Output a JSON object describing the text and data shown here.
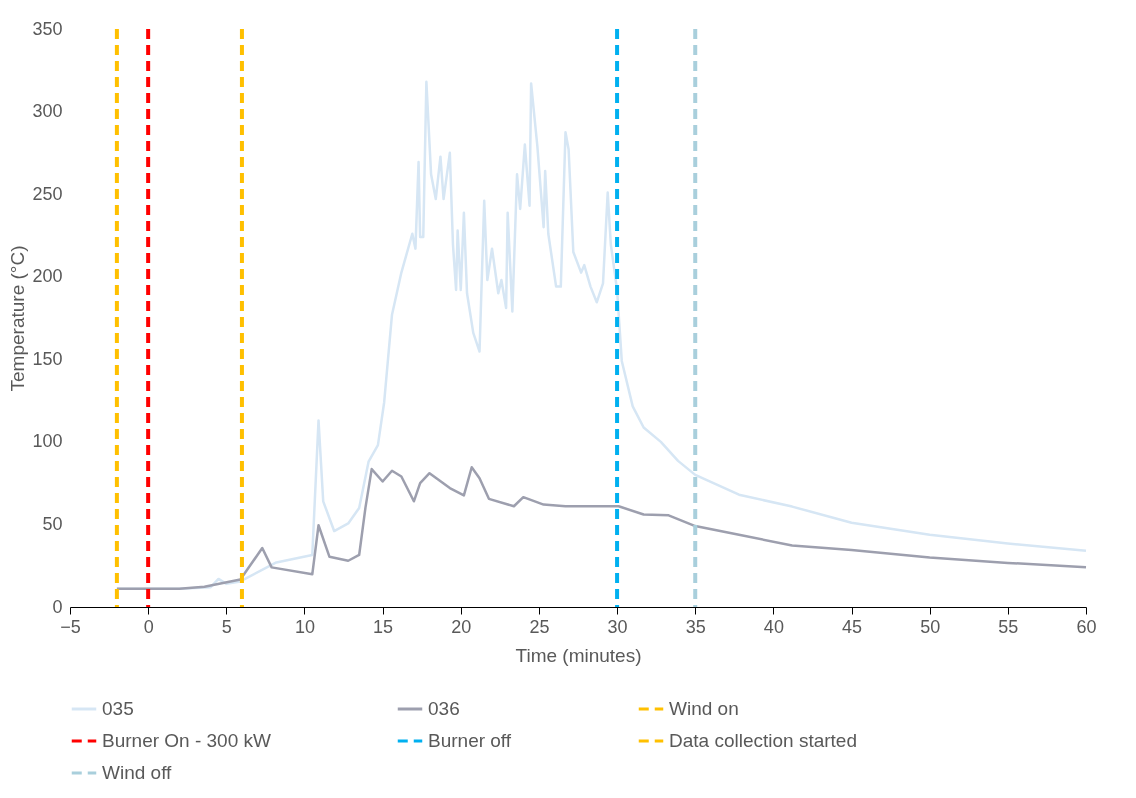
{
  "chart_data": {
    "type": "line",
    "xlabel": "Time (minutes)",
    "ylabel": "Temperature (°C)",
    "xlim": [
      -5,
      60
    ],
    "ylim": [
      0,
      350
    ],
    "xticks": [
      -5,
      0,
      5,
      10,
      15,
      20,
      25,
      30,
      35,
      40,
      45,
      50,
      55,
      60
    ],
    "yticks": [
      0,
      50,
      100,
      150,
      200,
      250,
      300,
      350
    ],
    "grid": false,
    "legend": "bottom",
    "marker": "none",
    "series": [
      {
        "name": "035",
        "color": "#d6e6f4",
        "x": [
          -2,
          0,
          2,
          4,
          4.5,
          5,
          5.9,
          8.2,
          10.5,
          10.9,
          11.2,
          11.9,
          12.8,
          13.5,
          14.1,
          14.7,
          15.1,
          15.6,
          16.2,
          16.9,
          17.1,
          17.3,
          17.4,
          17.6,
          17.8,
          18.1,
          18.4,
          18.7,
          18.9,
          19.3,
          19.5,
          19.7,
          19.8,
          20.0,
          20.2,
          20.4,
          20.8,
          21.2,
          21.5,
          21.7,
          22.0,
          22.4,
          22.6,
          22.9,
          23.0,
          23.3,
          23.6,
          23.8,
          24.1,
          24.4,
          24.5,
          24.9,
          25.3,
          25.4,
          25.6,
          26.1,
          26.4,
          26.7,
          26.9,
          27.2,
          27.7,
          27.9,
          28.3,
          28.7,
          29.1,
          29.4,
          29.6,
          30.0,
          30.3,
          31.0,
          31.7,
          32.8,
          33.9,
          35,
          37.8,
          41.2,
          45,
          50,
          55,
          60
        ],
        "values": [
          11,
          11,
          11,
          12,
          17,
          14,
          15.5,
          27,
          31.5,
          113,
          64,
          46,
          50.6,
          60,
          88,
          98,
          124,
          177,
          202.5,
          226,
          217,
          269.5,
          224,
          224,
          318,
          262,
          247,
          272.7,
          247,
          275,
          219.5,
          192,
          228,
          192,
          238.7,
          190,
          166,
          154.7,
          246,
          198,
          217,
          190,
          198,
          181,
          238.7,
          179,
          262,
          241,
          280,
          243,
          317,
          279,
          230,
          264,
          226,
          194,
          194,
          287.5,
          277,
          215,
          202.5,
          207,
          194,
          184.5,
          196,
          251,
          219.5,
          192,
          149,
          121.5,
          108.7,
          100,
          88.5,
          80,
          68,
          60.8,
          51,
          43.7,
          38.4,
          34
        ]
      },
      {
        "name": "036",
        "color": "#9d9fae",
        "x": [
          -2,
          0,
          2,
          3.6,
          5.9,
          7.3,
          7.9,
          10.5,
          10.9,
          11.6,
          12.8,
          13.5,
          13.9,
          14.3,
          15.0,
          15.6,
          16.2,
          17.0,
          17.4,
          18.0,
          19.3,
          20.2,
          20.7,
          21.2,
          21.8,
          23.4,
          24.0,
          25.3,
          26.7,
          30.1,
          31.7,
          33.3,
          35,
          37.8,
          41.2,
          45,
          50,
          55,
          60
        ],
        "values": [
          11,
          11,
          11,
          12.3,
          16.6,
          35.7,
          24,
          19.8,
          49.5,
          30.4,
          28,
          31.5,
          60,
          83.5,
          76,
          82.5,
          79,
          64,
          75,
          81,
          72,
          67.6,
          84.6,
          78,
          65.5,
          61,
          66.5,
          62,
          61,
          61,
          56,
          55.5,
          49,
          43.7,
          37.3,
          34.5,
          30,
          26.7,
          24
        ]
      }
    ],
    "ref_lines": [
      {
        "axis": "x",
        "value": -2,
        "label": "Wind on",
        "color": "#ffc000",
        "line_style": "dashed"
      },
      {
        "axis": "x",
        "value": 0,
        "label": "Burner On - 300 kW",
        "color": "#ff0000",
        "line_style": "dashed"
      },
      {
        "axis": "x",
        "value": 30,
        "label": "Burner off",
        "color": "#00b0f0",
        "line_style": "dashed"
      },
      {
        "axis": "x",
        "value": 6,
        "label": "Data collection started",
        "color": "#ffc000",
        "line_style": "dashed"
      },
      {
        "axis": "x",
        "value": 35,
        "label": "Wind off",
        "color": "#a9cfdc",
        "line_style": "dashed"
      }
    ]
  }
}
